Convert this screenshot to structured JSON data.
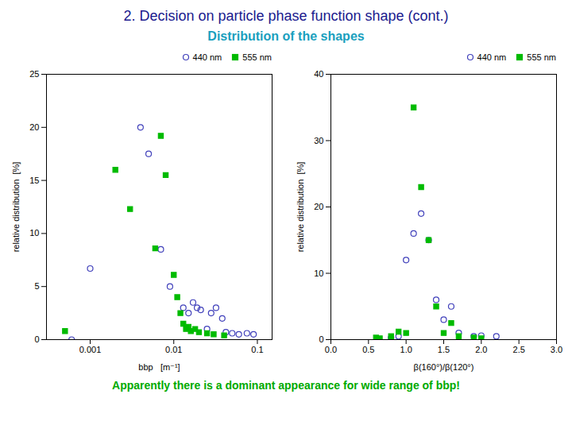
{
  "chart_data": [
    {
      "type": "scatter",
      "title": "2. Decision on particle phase function shape (cont.)",
      "subtitle": "Distribution of the shapes",
      "annotations": [
        "Apparently there is a dominant appearance for wide range of bbp!"
      ],
      "xlabel": "bbp   [m⁻¹]",
      "ylabel": "relative distribution  [%]",
      "log": "x",
      "xlim": [
        0.0003,
        0.15
      ],
      "xticks": [
        0.001,
        0.01,
        0.1
      ],
      "ylim": [
        0,
        25
      ],
      "yticks": [
        0,
        5,
        10,
        15,
        20,
        25
      ],
      "grid": false,
      "legend": "upper right",
      "series": [
        {
          "name": "440 nm",
          "color": "#4040bb",
          "marker": "circle",
          "x": [
            0.0006,
            0.001,
            0.004,
            0.005,
            0.007,
            0.009,
            0.013,
            0.015,
            0.017,
            0.019,
            0.021,
            0.025,
            0.028,
            0.032,
            0.038,
            0.042,
            0.05,
            0.06,
            0.075,
            0.09
          ],
          "y": [
            0.0,
            6.7,
            20.0,
            17.5,
            8.5,
            5.0,
            3.0,
            2.5,
            3.5,
            3.0,
            2.8,
            1.0,
            2.5,
            3.0,
            2.0,
            0.7,
            0.6,
            0.5,
            0.6,
            0.5
          ]
        },
        {
          "name": "555 nm",
          "color": "#00bb00",
          "marker": "square",
          "x": [
            0.0005,
            0.002,
            0.003,
            0.006,
            0.007,
            0.008,
            0.01,
            0.011,
            0.012,
            0.013,
            0.014,
            0.015,
            0.016,
            0.018,
            0.02,
            0.025,
            0.03,
            0.04
          ],
          "y": [
            0.8,
            16.0,
            12.3,
            8.6,
            19.2,
            15.5,
            6.1,
            4.0,
            2.5,
            1.5,
            1.0,
            1.2,
            0.8,
            1.0,
            0.7,
            0.6,
            0.5,
            0.4
          ]
        }
      ]
    },
    {
      "type": "scatter",
      "xlabel": "β(160°)/β(120°)",
      "ylabel": "relative distribution  [%]",
      "xlim": [
        0.0,
        3.0
      ],
      "xticks": [
        {
          "value": 0.0,
          "label": "0.0"
        },
        0.5,
        {
          "value": 1.0,
          "label": "1.0"
        },
        1.5,
        {
          "value": 2.0,
          "label": "2.0"
        },
        2.5,
        {
          "value": 3.0,
          "label": "3.0"
        }
      ],
      "ylim": [
        0,
        40
      ],
      "yticks": [
        0,
        10,
        20,
        30,
        40
      ],
      "grid": false,
      "legend": "upper right",
      "series": [
        {
          "name": "440 nm",
          "color": "#4040bb",
          "marker": "circle",
          "x": [
            0.8,
            0.9,
            1.0,
            1.1,
            1.2,
            1.3,
            1.4,
            1.5,
            1.6,
            1.7,
            1.9,
            2.0,
            2.2
          ],
          "y": [
            0.3,
            0.5,
            12.0,
            16.0,
            19.0,
            15.0,
            6.0,
            3.0,
            5.0,
            1.0,
            0.5,
            0.6,
            0.5
          ]
        },
        {
          "name": "555 nm",
          "color": "#00bb00",
          "marker": "square",
          "x": [
            0.6,
            0.65,
            0.8,
            0.9,
            1.0,
            1.1,
            1.2,
            1.3,
            1.4,
            1.5,
            1.6,
            1.7,
            1.9,
            2.0
          ],
          "y": [
            0.3,
            0.2,
            0.5,
            1.2,
            1.0,
            35.0,
            23.0,
            15.0,
            5.0,
            1.0,
            2.5,
            0.5,
            0.3,
            0.2
          ]
        }
      ]
    }
  ]
}
